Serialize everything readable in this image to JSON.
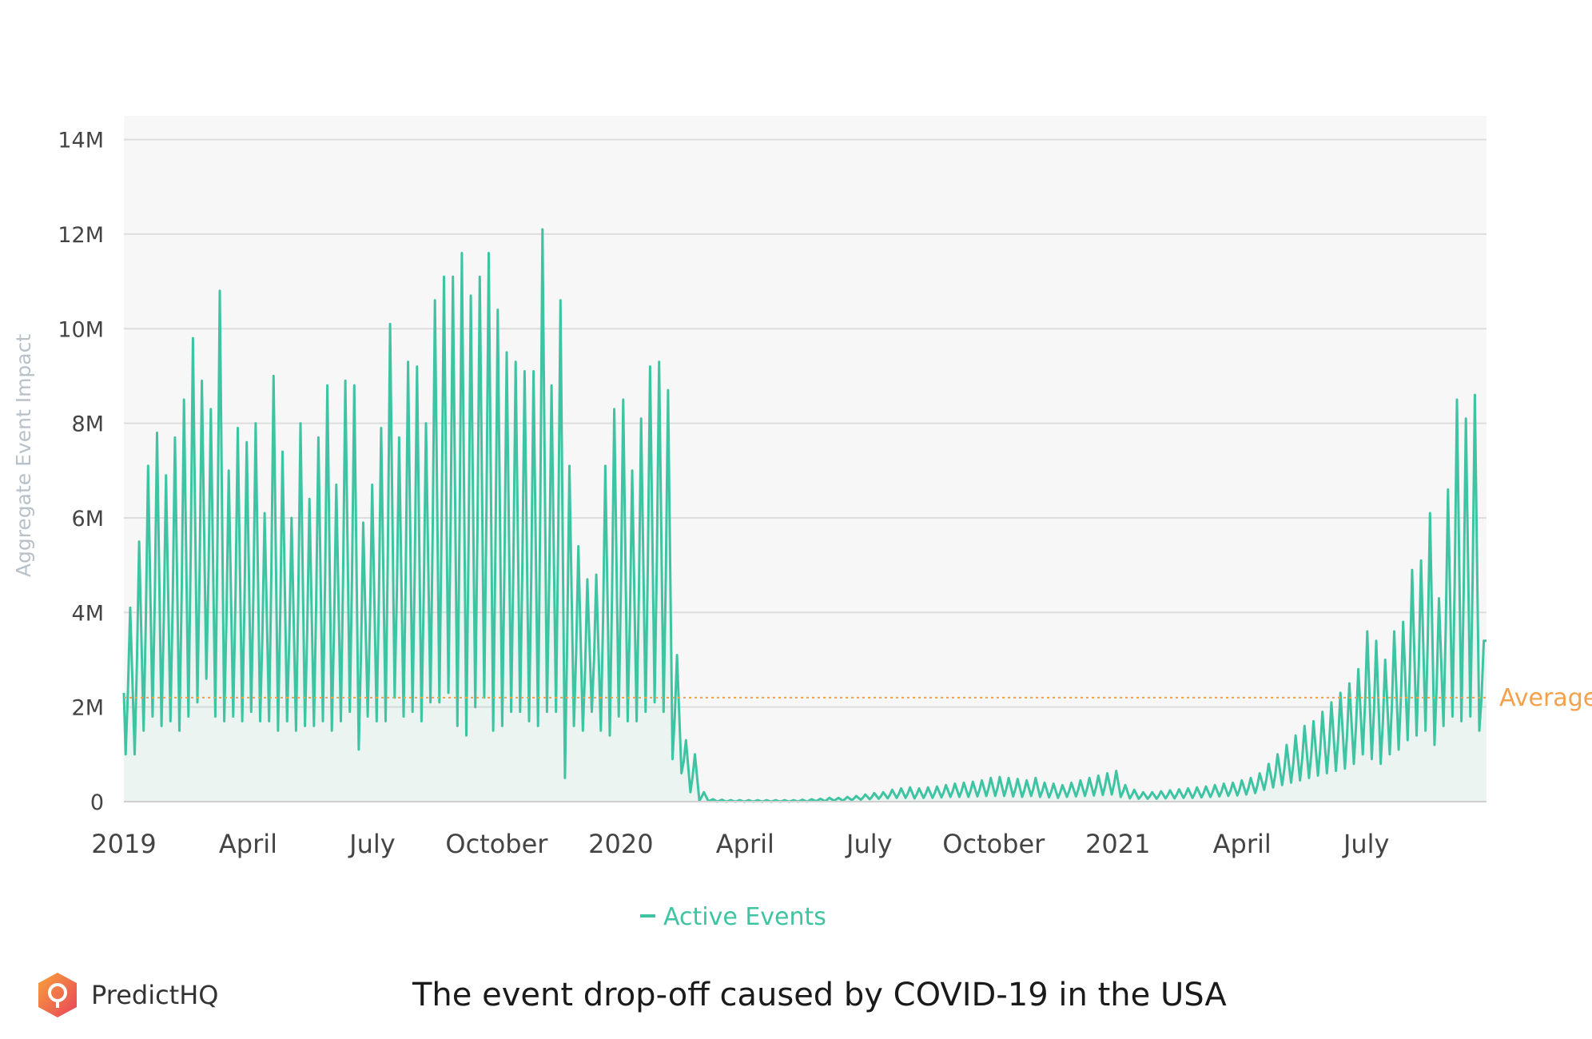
{
  "chart_data": {
    "type": "line",
    "title": "",
    "xlabel": "",
    "ylabel": "Aggregate Event Impact",
    "ylim": [
      0,
      14500000
    ],
    "y_ticks": [
      {
        "value": 0,
        "label": "0"
      },
      {
        "value": 2000000,
        "label": "2M"
      },
      {
        "value": 4000000,
        "label": "4M"
      },
      {
        "value": 6000000,
        "label": "6M"
      },
      {
        "value": 8000000,
        "label": "8M"
      },
      {
        "value": 10000000,
        "label": "10M"
      },
      {
        "value": 12000000,
        "label": "12M"
      },
      {
        "value": 14000000,
        "label": "14M"
      }
    ],
    "x_ticks": [
      {
        "label": "2019",
        "month": 0
      },
      {
        "label": "April",
        "month": 3
      },
      {
        "label": "July",
        "month": 6
      },
      {
        "label": "October",
        "month": 9
      },
      {
        "label": "2020",
        "month": 12
      },
      {
        "label": "April",
        "month": 15
      },
      {
        "label": "July",
        "month": 18
      },
      {
        "label": "October",
        "month": 21
      },
      {
        "label": "2021",
        "month": 24
      },
      {
        "label": "April",
        "month": 27
      },
      {
        "label": "July",
        "month": 30
      }
    ],
    "x_range_months": [
      0,
      32.9
    ],
    "average": {
      "value": 2200000,
      "label": "Average"
    },
    "legend": "top-center below axis",
    "series": [
      {
        "name": "Active Events",
        "color": "#3ec4a2",
        "x_unit": "weeks since Jan 2019",
        "weekly_peaks": [
          4.1,
          5.5,
          7.1,
          7.8,
          6.9,
          7.7,
          8.5,
          9.8,
          8.9,
          8.3,
          10.8,
          7.0,
          7.9,
          7.6,
          8.0,
          6.1,
          9.0,
          7.4,
          6.0,
          8.0,
          6.4,
          7.7,
          8.8,
          6.7,
          8.9,
          8.8,
          5.9,
          6.7,
          7.9,
          10.1,
          7.7,
          9.3,
          9.2,
          8.0,
          10.6,
          11.1,
          11.1,
          11.6,
          10.7,
          11.1,
          11.6,
          10.4,
          9.5,
          9.3,
          9.1,
          9.1,
          12.1,
          8.8,
          10.6,
          7.1,
          5.4,
          4.7,
          4.8,
          7.1,
          8.3,
          8.5,
          7.0,
          8.1,
          9.2,
          9.3,
          8.7,
          3.1,
          1.3,
          1.0,
          0.2,
          0.05,
          0.04,
          0.03,
          0.03,
          0.03,
          0.03,
          0.03,
          0.03,
          0.03,
          0.03,
          0.04,
          0.05,
          0.06,
          0.08,
          0.08,
          0.1,
          0.12,
          0.15,
          0.18,
          0.2,
          0.25,
          0.28,
          0.3,
          0.28,
          0.3,
          0.32,
          0.35,
          0.38,
          0.4,
          0.42,
          0.45,
          0.5,
          0.52,
          0.5,
          0.48,
          0.45,
          0.5,
          0.4,
          0.38,
          0.35,
          0.4,
          0.45,
          0.5,
          0.55,
          0.6,
          0.65,
          0.35,
          0.25,
          0.2,
          0.2,
          0.22,
          0.24,
          0.26,
          0.28,
          0.3,
          0.32,
          0.35,
          0.38,
          0.4,
          0.45,
          0.5,
          0.6,
          0.8,
          1.0,
          1.2,
          1.4,
          1.6,
          1.7,
          1.9,
          2.1,
          2.3,
          2.5,
          2.8,
          3.6,
          3.4,
          3.0,
          3.6,
          3.8,
          4.9,
          5.1,
          6.1,
          4.3,
          6.6,
          8.5,
          8.1,
          8.6,
          3.4
        ],
        "weekly_troughs": [
          1.0,
          1.0,
          1.5,
          1.8,
          1.6,
          1.7,
          1.5,
          1.8,
          2.1,
          2.6,
          1.8,
          1.7,
          1.8,
          1.7,
          1.9,
          1.7,
          1.7,
          1.5,
          1.7,
          1.5,
          1.6,
          1.6,
          1.7,
          1.5,
          1.7,
          1.9,
          1.1,
          1.8,
          1.7,
          1.7,
          2.2,
          1.8,
          1.9,
          1.7,
          2.1,
          2.1,
          2.3,
          1.6,
          1.4,
          2.0,
          2.2,
          1.5,
          1.6,
          1.9,
          1.9,
          1.7,
          1.6,
          1.9,
          1.9,
          0.5,
          1.6,
          1.5,
          1.9,
          1.5,
          1.4,
          1.8,
          1.7,
          1.7,
          1.9,
          2.1,
          1.9,
          0.9,
          0.6,
          0.2,
          0.02,
          0.01,
          0.0,
          0.0,
          0.0,
          0.0,
          0.0,
          0.0,
          0.0,
          0.0,
          0.0,
          0.0,
          0.0,
          0.01,
          0.01,
          0.02,
          0.02,
          0.03,
          0.04,
          0.05,
          0.06,
          0.07,
          0.08,
          0.08,
          0.07,
          0.08,
          0.08,
          0.09,
          0.1,
          0.1,
          0.1,
          0.11,
          0.12,
          0.12,
          0.12,
          0.11,
          0.1,
          0.12,
          0.1,
          0.09,
          0.08,
          0.1,
          0.11,
          0.12,
          0.13,
          0.14,
          0.15,
          0.1,
          0.07,
          0.06,
          0.06,
          0.06,
          0.07,
          0.07,
          0.08,
          0.08,
          0.09,
          0.1,
          0.11,
          0.12,
          0.13,
          0.15,
          0.18,
          0.25,
          0.3,
          0.35,
          0.4,
          0.45,
          0.5,
          0.55,
          0.6,
          0.65,
          0.7,
          0.8,
          1.0,
          0.9,
          0.8,
          1.0,
          1.1,
          1.3,
          1.4,
          1.5,
          1.2,
          1.6,
          1.8,
          1.7,
          1.8,
          1.5
        ]
      }
    ]
  },
  "caption": "The event drop-off caused by COVID-19 in the USA",
  "brand": {
    "name": "PredictHQ",
    "logo_icon": "predicthq-logo-icon"
  }
}
